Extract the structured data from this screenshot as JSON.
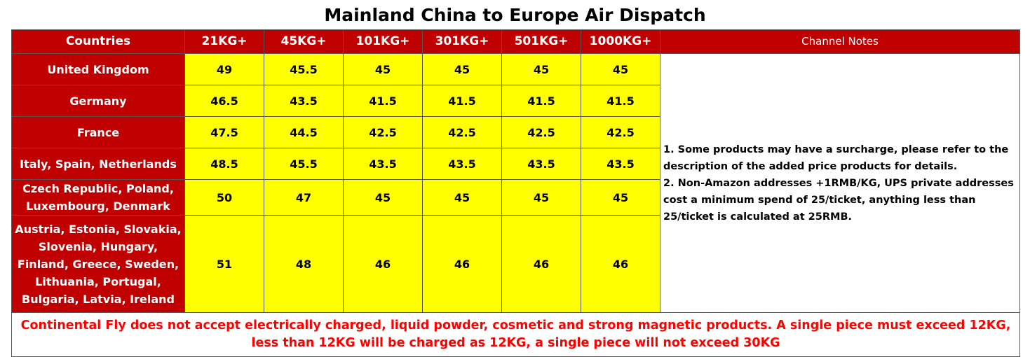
{
  "title": "Mainland China to Europe Air Dispatch",
  "table": {
    "header": [
      "Countries",
      "21KG+",
      "45KG+",
      "101KG+",
      "301KG+",
      "501KG+",
      "1000KG+",
      "Channel Notes"
    ],
    "rows": [
      {
        "country": "United Kingdom",
        "values": [
          49,
          45.5,
          45,
          45,
          45,
          45
        ]
      },
      {
        "country": "Germany",
        "values": [
          46.5,
          43.5,
          41.5,
          41.5,
          41.5,
          41.5
        ]
      },
      {
        "country": "France",
        "values": [
          47.5,
          44.5,
          42.5,
          42.5,
          42.5,
          42.5
        ]
      },
      {
        "country": "Italy, Spain, Netherlands",
        "values": [
          48.5,
          45.5,
          43.5,
          43.5,
          43.5,
          43.5
        ]
      },
      {
        "country": "Czech Republic, Poland, Luxembourg, Denmark",
        "values": [
          50,
          47,
          45,
          45,
          45,
          45
        ]
      },
      {
        "country": "Austria, Estonia, Slovakia, Slovenia, Hungary, Finland, Greece, Sweden, Lithuania, Portugal, Bulgaria, Latvia, Ireland",
        "values": [
          51,
          48,
          46,
          46,
          46,
          46
        ]
      }
    ],
    "notes": [
      "1. Some products may have a surcharge, please refer to the description of the added price products for details.",
      "2. Non-Amazon addresses +1RMB/KG, UPS private addresses cost a minimum spend of 25/ticket, anything less than 25/ticket is calculated at 25RMB."
    ],
    "footer": "Continental Fly does not accept electrically charged, liquid powder, cosmetic and strong magnetic products. A single piece must exceed 12KG, less than 12KG will be charged as 12KG, a single piece will not exceed 30KG"
  }
}
